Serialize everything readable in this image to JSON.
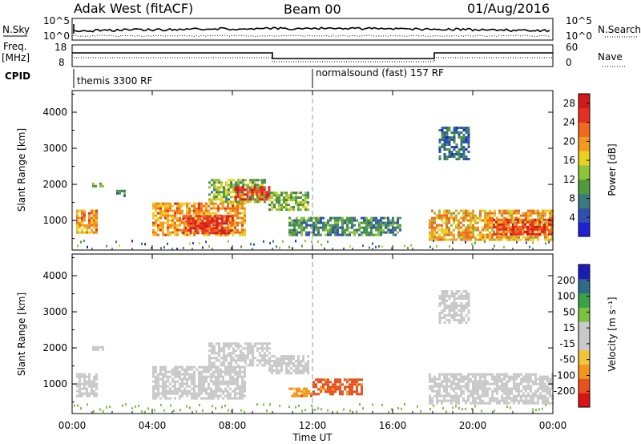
{
  "header": {
    "site_title": "Adak West (fitACF)",
    "beam": "Beam 00",
    "date": "01/Aug/2016"
  },
  "panel_labels": {
    "nsky": "N.Sky",
    "nsearch": "N.Search",
    "freq_line1": "Freq.",
    "freq_line2": "[MHz]",
    "nave": "Nave",
    "cpid": "CPID",
    "nsky_ticks": [
      "10^5",
      "10^0"
    ],
    "nsearch_ticks": [
      "10^5",
      "10^0"
    ],
    "freq_ticks": [
      "18",
      "8"
    ],
    "nave_ticks": [
      "60",
      "0"
    ]
  },
  "cpid_segments": [
    {
      "label": "themis 3300 RF",
      "start_hour": 0
    },
    {
      "label": "normalsound (fast) 157 RF",
      "start_hour": 12
    }
  ],
  "colors": {
    "power_scale": [
      "#1f1fd6",
      "#2f50b0",
      "#3a7a7a",
      "#4f9a3a",
      "#8fc33a",
      "#e8d21e",
      "#f39a1e",
      "#f06a1e",
      "#e83020",
      "#d21a1a"
    ],
    "velocity_scale": [
      "#d81414",
      "#e8501e",
      "#f4961e",
      "#f6c23a",
      "#c9c9c9",
      "#c9c9c9",
      "#7cc23c",
      "#3aa34a",
      "#2f6a8a",
      "#1c1cb4"
    ]
  },
  "chart_data": [
    {
      "type": "heatmap",
      "name": "power",
      "xlabel": "Time UT",
      "x_range_hours": [
        0,
        24
      ],
      "x_tick_labels": [
        "00:00",
        "04:00",
        "08:00",
        "12:00",
        "16:00",
        "20:00",
        "00:00"
      ],
      "ylabel": "Slant Range [km]",
      "ylim": [
        180,
        4600
      ],
      "y_ticks": [
        "1000",
        "2000",
        "3000",
        "4000"
      ],
      "colorbar_label": "Power [dB]",
      "colorbar_ticks": [
        "4",
        "8",
        "12",
        "16",
        "20",
        "24",
        "28"
      ],
      "colorbar_range": [
        0,
        30
      ],
      "echo_regions": [
        {
          "t0": 0.2,
          "t1": 1.2,
          "r0": 700,
          "r1": 1300,
          "level": 20
        },
        {
          "t0": 1.0,
          "t1": 1.5,
          "r0": 1950,
          "r1": 2050,
          "level": 10
        },
        {
          "t0": 2.2,
          "t1": 2.6,
          "r0": 1700,
          "r1": 1850,
          "level": 8
        },
        {
          "t0": 4.0,
          "t1": 8.6,
          "r0": 600,
          "r1": 1500,
          "level": 20
        },
        {
          "t0": 5.5,
          "t1": 8.0,
          "r0": 650,
          "r1": 1150,
          "level": 26
        },
        {
          "t0": 6.8,
          "t1": 9.6,
          "r0": 1550,
          "r1": 2150,
          "level": 13
        },
        {
          "t0": 8.1,
          "t1": 9.9,
          "r0": 1600,
          "r1": 1950,
          "level": 26
        },
        {
          "t0": 9.8,
          "t1": 11.8,
          "r0": 1300,
          "r1": 1800,
          "level": 12
        },
        {
          "t0": 10.8,
          "t1": 16.4,
          "r0": 600,
          "r1": 1100,
          "level": 9
        },
        {
          "t0": 17.8,
          "t1": 24.0,
          "r0": 500,
          "r1": 1300,
          "level": 19
        },
        {
          "t0": 21.0,
          "t1": 24.0,
          "r0": 600,
          "r1": 1050,
          "level": 25
        },
        {
          "t0": 18.3,
          "t1": 19.8,
          "r0": 2700,
          "r1": 3600,
          "level": 7
        }
      ]
    },
    {
      "type": "heatmap",
      "name": "velocity",
      "xlabel": "Time UT",
      "x_range_hours": [
        0,
        24
      ],
      "x_tick_labels": [
        "00:00",
        "04:00",
        "08:00",
        "12:00",
        "16:00",
        "20:00",
        "00:00"
      ],
      "ylabel": "Slant Range [km]",
      "ylim": [
        180,
        4600
      ],
      "y_ticks": [
        "1000",
        "2000",
        "3000",
        "4000"
      ],
      "colorbar_label": "Velocity [m s⁻¹]",
      "colorbar_ticks": [
        "200",
        "100",
        "50",
        "15",
        "-15",
        "-50",
        "-100",
        "-200"
      ],
      "echo_regions": [
        {
          "t0": 0.2,
          "t1": 1.2,
          "r0": 700,
          "r1": 1300,
          "level": 0
        },
        {
          "t0": 1.0,
          "t1": 1.5,
          "r0": 1950,
          "r1": 2050,
          "level": 0
        },
        {
          "t0": 4.0,
          "t1": 8.6,
          "r0": 600,
          "r1": 1500,
          "level": 0
        },
        {
          "t0": 6.8,
          "t1": 9.9,
          "r0": 1550,
          "r1": 2150,
          "level": 0
        },
        {
          "t0": 9.8,
          "t1": 11.8,
          "r0": 1300,
          "r1": 1800,
          "level": 0
        },
        {
          "t0": 10.8,
          "t1": 12.0,
          "r0": 650,
          "r1": 900,
          "level": -40
        },
        {
          "t0": 12.0,
          "t1": 14.5,
          "r0": 700,
          "r1": 1150,
          "level": -60
        },
        {
          "t0": 17.8,
          "t1": 24.0,
          "r0": 500,
          "r1": 1300,
          "level": 0
        },
        {
          "t0": 18.3,
          "t1": 19.8,
          "r0": 2700,
          "r1": 3600,
          "level": 0
        }
      ]
    }
  ]
}
